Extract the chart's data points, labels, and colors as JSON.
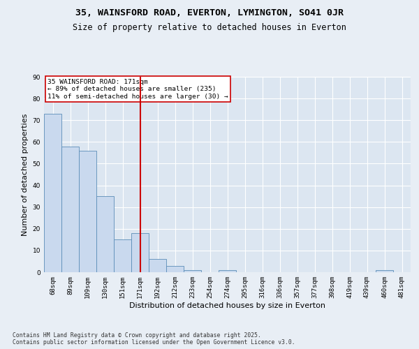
{
  "title1": "35, WAINSFORD ROAD, EVERTON, LYMINGTON, SO41 0JR",
  "title2": "Size of property relative to detached houses in Everton",
  "xlabel": "Distribution of detached houses by size in Everton",
  "ylabel": "Number of detached properties",
  "categories": [
    "68sqm",
    "89sqm",
    "109sqm",
    "130sqm",
    "151sqm",
    "171sqm",
    "192sqm",
    "212sqm",
    "233sqm",
    "254sqm",
    "274sqm",
    "295sqm",
    "316sqm",
    "336sqm",
    "357sqm",
    "377sqm",
    "398sqm",
    "419sqm",
    "439sqm",
    "460sqm",
    "481sqm"
  ],
  "values": [
    73,
    58,
    56,
    35,
    15,
    18,
    6,
    3,
    1,
    0,
    1,
    0,
    0,
    0,
    0,
    0,
    0,
    0,
    0,
    1,
    0
  ],
  "bar_color": "#c9d9ee",
  "bar_edge_color": "#5b8db8",
  "vline_color": "#cc0000",
  "annotation_text": "35 WAINSFORD ROAD: 171sqm\n← 89% of detached houses are smaller (235)\n11% of semi-detached houses are larger (30) →",
  "annotation_box_color": "white",
  "annotation_box_edge": "#cc0000",
  "ylim": [
    0,
    90
  ],
  "yticks": [
    0,
    10,
    20,
    30,
    40,
    50,
    60,
    70,
    80,
    90
  ],
  "footer": "Contains HM Land Registry data © Crown copyright and database right 2025.\nContains public sector information licensed under the Open Government Licence v3.0.",
  "background_color": "#e8eef5",
  "plot_background": "#dce6f1",
  "grid_color": "white",
  "title_fontsize": 9.5,
  "subtitle_fontsize": 8.5,
  "tick_fontsize": 6.5,
  "label_fontsize": 8,
  "footer_fontsize": 5.8,
  "annotation_fontsize": 6.8
}
